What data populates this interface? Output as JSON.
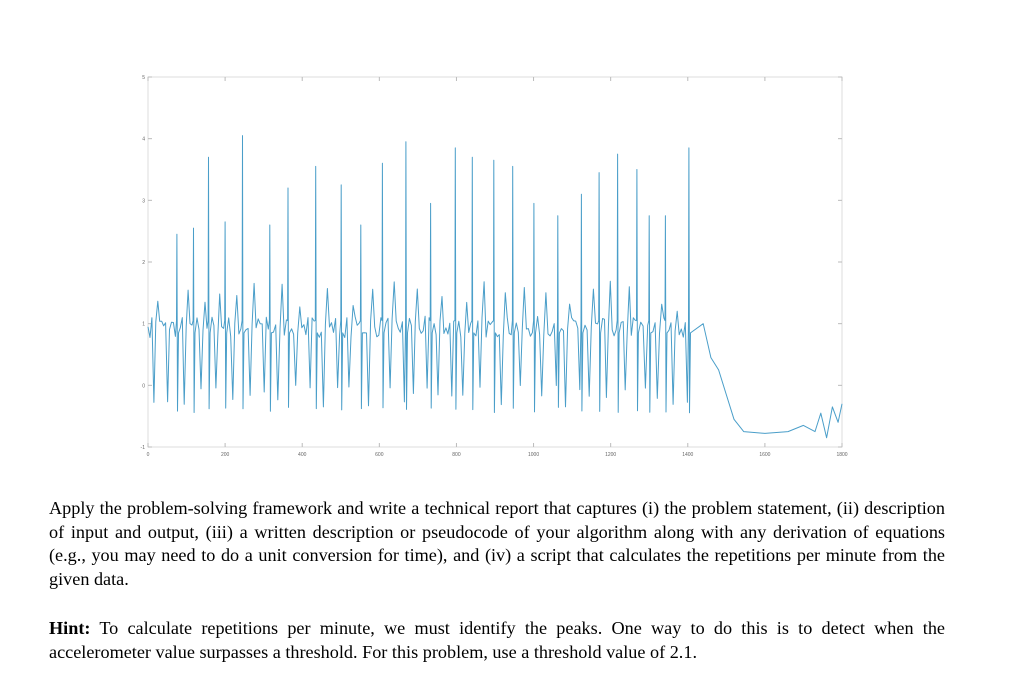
{
  "chart_data": {
    "type": "line",
    "title": "",
    "xlabel": "",
    "ylabel": "",
    "xlim": [
      0,
      1800
    ],
    "ylim": [
      -1,
      5
    ],
    "x_ticks": [
      0,
      200,
      400,
      600,
      800,
      1000,
      1200,
      1400,
      1600,
      1800
    ],
    "y_ticks": [
      -1,
      0,
      1,
      2,
      3,
      4,
      5
    ],
    "x_tick_labels": [
      "0",
      "200",
      "400",
      "600",
      "800",
      "1000",
      "1200",
      "1400",
      "1600",
      "1800"
    ],
    "y_tick_labels": [
      "-1",
      "0",
      "1",
      "2",
      "3",
      "4",
      "5"
    ],
    "grid": false,
    "line_color": "#4a9ec9",
    "series": [
      {
        "peaks": [
          {
            "x": 75,
            "y": 2.45
          },
          {
            "x": 118,
            "y": 2.55
          },
          {
            "x": 157,
            "y": 3.7
          },
          {
            "x": 200,
            "y": 2.65
          },
          {
            "x": 245,
            "y": 4.05
          },
          {
            "x": 316,
            "y": 2.6
          },
          {
            "x": 363,
            "y": 3.2
          },
          {
            "x": 435,
            "y": 3.55
          },
          {
            "x": 501,
            "y": 3.25
          },
          {
            "x": 552,
            "y": 2.6
          },
          {
            "x": 608,
            "y": 3.6
          },
          {
            "x": 669,
            "y": 3.95
          },
          {
            "x": 733,
            "y": 2.95
          },
          {
            "x": 797,
            "y": 3.85
          },
          {
            "x": 841,
            "y": 3.7
          },
          {
            "x": 897,
            "y": 3.65
          },
          {
            "x": 946,
            "y": 3.55
          },
          {
            "x": 1001,
            "y": 2.95
          },
          {
            "x": 1063,
            "y": 2.75
          },
          {
            "x": 1124,
            "y": 3.1
          },
          {
            "x": 1170,
            "y": 3.45
          },
          {
            "x": 1218,
            "y": 3.75
          },
          {
            "x": 1268,
            "y": 3.5
          },
          {
            "x": 1300,
            "y": 2.75
          },
          {
            "x": 1342,
            "y": 2.75
          },
          {
            "x": 1403,
            "y": 3.85
          }
        ],
        "baseline": 0.95,
        "trough": -0.35,
        "tail": [
          {
            "x": 1440,
            "y": 1.0
          },
          {
            "x": 1460,
            "y": 0.45
          },
          {
            "x": 1480,
            "y": 0.25
          },
          {
            "x": 1500,
            "y": -0.15
          },
          {
            "x": 1520,
            "y": -0.55
          },
          {
            "x": 1545,
            "y": -0.75
          },
          {
            "x": 1600,
            "y": -0.78
          },
          {
            "x": 1660,
            "y": -0.75
          },
          {
            "x": 1700,
            "y": -0.65
          },
          {
            "x": 1730,
            "y": -0.75
          },
          {
            "x": 1745,
            "y": -0.45
          },
          {
            "x": 1760,
            "y": -0.85
          },
          {
            "x": 1775,
            "y": -0.35
          },
          {
            "x": 1790,
            "y": -0.6
          },
          {
            "x": 1800,
            "y": -0.3
          }
        ]
      }
    ]
  },
  "text": {
    "task": "Apply the problem-solving framework and write a technical report that captures (i) the problem statement, (ii) description of input and output, (iii) a written description or pseudocode of your algorithm along with any derivation of equations (e.g., you may need to do a unit conversion for time), and (iv) a script that calculates the repetitions per minute from the given data.",
    "hint_label": "Hint:",
    "hint_body": " To calculate repetitions per minute, we must identify the peaks. One way to do this is to detect when the accelerometer value surpasses a threshold. For this problem, use a threshold value of 2.1."
  }
}
